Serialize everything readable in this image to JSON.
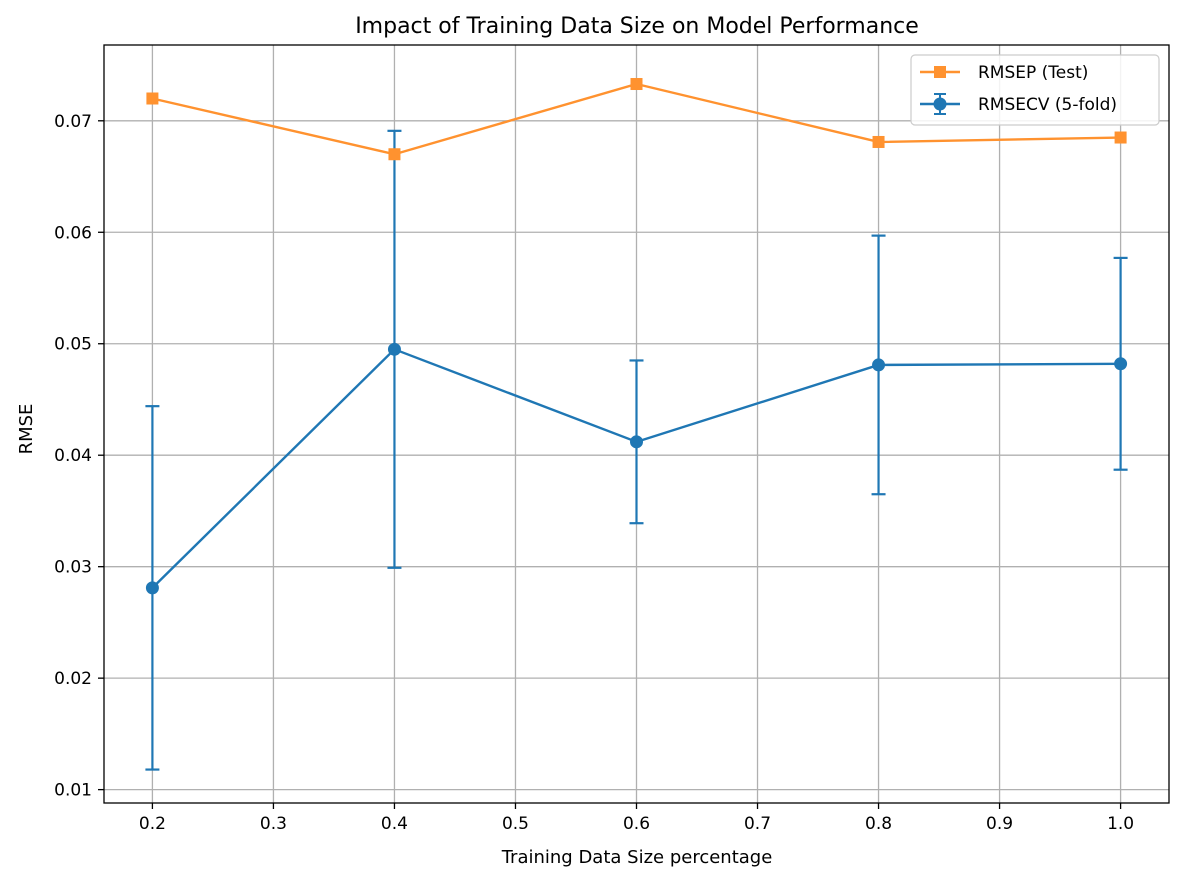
{
  "chart_data": {
    "type": "line",
    "title": "Impact of Training Data Size on Model Performance",
    "xlabel": "Training Data Size percentage",
    "ylabel": "RMSE",
    "x": [
      0.2,
      0.4,
      0.6,
      0.8,
      1.0
    ],
    "xlim": [
      0.16,
      1.04
    ],
    "ylim": [
      0.0088,
      0.0768
    ],
    "xticks": [
      0.2,
      0.3,
      0.4,
      0.5,
      0.6,
      0.7,
      0.8,
      0.9,
      1.0
    ],
    "xtick_labels": [
      "0.2",
      "0.3",
      "0.4",
      "0.5",
      "0.6",
      "0.7",
      "0.8",
      "0.9",
      "1.0"
    ],
    "yticks": [
      0.01,
      0.02,
      0.03,
      0.04,
      0.05,
      0.06,
      0.07
    ],
    "ytick_labels": [
      "0.01",
      "0.02",
      "0.03",
      "0.04",
      "0.05",
      "0.06",
      "0.07"
    ],
    "grid": true,
    "legend_position": "top-right",
    "series": [
      {
        "name": "RMSEP (Test)",
        "marker": "square",
        "color": "#ff922f",
        "values": [
          0.072,
          0.067,
          0.0733,
          0.0681,
          0.0685
        ]
      },
      {
        "name": "RMSECV (5-fold)",
        "marker": "circle",
        "color": "#1f77b4",
        "values": [
          0.0281,
          0.0495,
          0.0412,
          0.0481,
          0.0482
        ],
        "error": [
          0.0163,
          0.0196,
          0.0073,
          0.0116,
          0.0095
        ]
      }
    ]
  }
}
